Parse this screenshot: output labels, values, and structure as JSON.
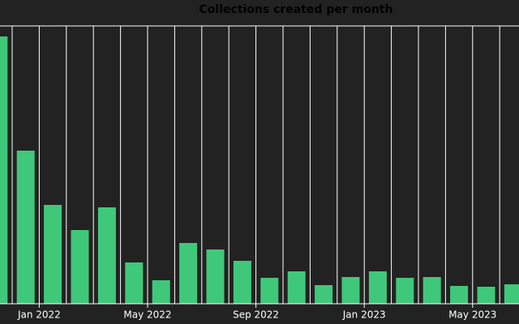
{
  "chart_data": {
    "type": "bar",
    "title": "Collections created per month",
    "categories": [
      null,
      null,
      "Jan 2022",
      null,
      null,
      null,
      "May 2022",
      null,
      null,
      null,
      "Sep 2022",
      null,
      null,
      null,
      "Jan 2023",
      null,
      null,
      null,
      "May 2023",
      null
    ],
    "values": [
      330,
      189,
      122,
      91,
      119,
      51,
      29,
      75,
      67,
      53,
      32,
      40,
      23,
      33,
      40,
      32,
      33,
      22,
      21,
      24
    ],
    "color": "#40c87a",
    "ylim": [
      0,
      343
    ],
    "grid": true
  }
}
